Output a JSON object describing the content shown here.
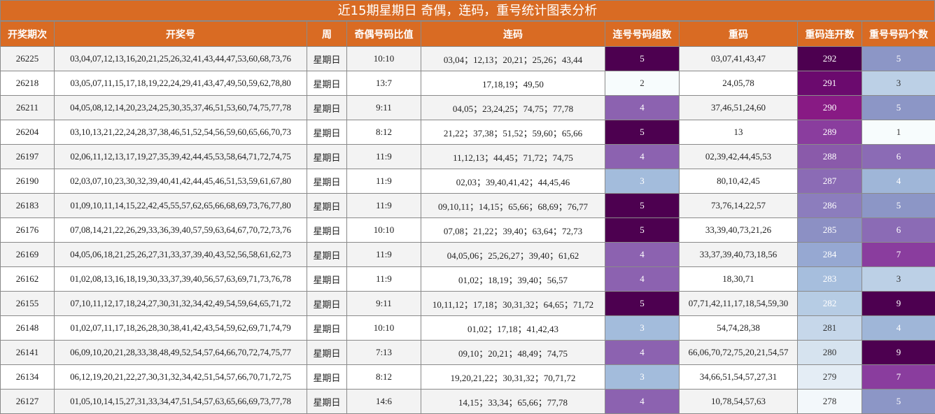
{
  "title": "近15期星期日 奇偶，连码，重号统计图表分析",
  "headers": [
    "开奖期次",
    "开奖号",
    "周",
    "奇偶号码比值",
    "连码",
    "连号号码组数",
    "重码",
    "重码连开数",
    "重号号码个数"
  ],
  "colors": {
    "header_bg": "#d96b23",
    "header_text": "#ffffff"
  },
  "rows": [
    {
      "issue": "26225",
      "numbers": "03,04,07,12,13,16,20,21,25,26,32,41,43,44,47,53,60,68,73,76",
      "week": "星期日",
      "odd_even": "10:10",
      "consecutive": "03,04；12,13；20,21；25,26；43,44",
      "groups": "5",
      "repeat": "03,07,41,43,47",
      "repeat_run": "292",
      "repeat_count": "5",
      "groups_color": "#4d0050",
      "run_color": "#4d0050",
      "count_color": "#8c96c6"
    },
    {
      "issue": "26218",
      "numbers": "03,05,07,11,15,17,18,19,22,24,29,41,43,47,49,50,59,62,78,80",
      "week": "星期日",
      "odd_even": "13:7",
      "consecutive": "17,18,19；49,50",
      "groups": "2",
      "repeat": "24,05,78",
      "repeat_run": "291",
      "repeat_count": "3",
      "groups_color": "#f7fcfd",
      "run_color": "#6b0a6e",
      "count_color": "#bcd0e6"
    },
    {
      "issue": "26211",
      "numbers": "04,05,08,12,14,20,23,24,25,30,35,37,46,51,53,60,74,75,77,78",
      "week": "星期日",
      "odd_even": "9:11",
      "consecutive": "04,05；23,24,25；74,75；77,78",
      "groups": "4",
      "repeat": "37,46,51,24,60",
      "repeat_run": "290",
      "repeat_count": "5",
      "groups_color": "#8c62b0",
      "run_color": "#881a84",
      "count_color": "#8c96c6"
    },
    {
      "issue": "26204",
      "numbers": "03,10,13,21,22,24,28,37,38,46,51,52,54,56,59,60,65,66,70,73",
      "week": "星期日",
      "odd_even": "8:12",
      "consecutive": "21,22；37,38；51,52；59,60；65,66",
      "groups": "5",
      "repeat": "13",
      "repeat_run": "289",
      "repeat_count": "1",
      "groups_color": "#4d0050",
      "run_color": "#8a3d9e",
      "count_color": "#f7fcfd"
    },
    {
      "issue": "26197",
      "numbers": "02,06,11,12,13,17,19,27,35,39,42,44,45,53,58,64,71,72,74,75",
      "week": "星期日",
      "odd_even": "11:9",
      "consecutive": "11,12,13；44,45；71,72；74,75",
      "groups": "4",
      "repeat": "02,39,42,44,45,53",
      "repeat_run": "288",
      "repeat_count": "6",
      "groups_color": "#8c62b0",
      "run_color": "#8a5aaa",
      "count_color": "#8b6bb5"
    },
    {
      "issue": "26190",
      "numbers": "02,03,07,10,23,30,32,39,40,41,42,44,45,46,51,53,59,61,67,80",
      "week": "星期日",
      "odd_even": "11:9",
      "consecutive": "02,03；39,40,41,42；44,45,46",
      "groups": "3",
      "repeat": "80,10,42,45",
      "repeat_run": "287",
      "repeat_count": "4",
      "groups_color": "#a3bcdc",
      "run_color": "#8b6bb5",
      "count_color": "#9fb6d8"
    },
    {
      "issue": "26183",
      "numbers": "01,09,10,11,14,15,22,42,45,55,57,62,65,66,68,69,73,76,77,80",
      "week": "星期日",
      "odd_even": "11:9",
      "consecutive": "09,10,11；14,15；65,66；68,69；76,77",
      "groups": "5",
      "repeat": "73,76,14,22,57",
      "repeat_run": "286",
      "repeat_count": "5",
      "groups_color": "#4d0050",
      "run_color": "#8c7dbd",
      "count_color": "#8c96c6"
    },
    {
      "issue": "26176",
      "numbers": "07,08,14,21,22,26,29,33,36,39,40,57,59,63,64,67,70,72,73,76",
      "week": "星期日",
      "odd_even": "10:10",
      "consecutive": "07,08；21,22；39,40；63,64；72,73",
      "groups": "5",
      "repeat": "33,39,40,73,21,26",
      "repeat_run": "285",
      "repeat_count": "6",
      "groups_color": "#4d0050",
      "run_color": "#8c90c4",
      "count_color": "#8b6bb5"
    },
    {
      "issue": "26169",
      "numbers": "04,05,06,18,21,25,26,27,31,33,37,39,40,43,52,56,58,61,62,73",
      "week": "星期日",
      "odd_even": "11:9",
      "consecutive": "04,05,06；25,26,27；39,40；61,62",
      "groups": "4",
      "repeat": "33,37,39,40,73,18,56",
      "repeat_run": "284",
      "repeat_count": "7",
      "groups_color": "#8c62b0",
      "run_color": "#96a8d2",
      "count_color": "#8a3d9e"
    },
    {
      "issue": "26162",
      "numbers": "01,02,08,13,16,18,19,30,33,37,39,40,56,57,63,69,71,73,76,78",
      "week": "星期日",
      "odd_even": "11:9",
      "consecutive": "01,02；18,19；39,40；56,57",
      "groups": "4",
      "repeat": "18,30,71",
      "repeat_run": "283",
      "repeat_count": "3",
      "groups_color": "#8c62b0",
      "run_color": "#a6bedd",
      "count_color": "#bcd0e6"
    },
    {
      "issue": "26155",
      "numbers": "07,10,11,12,17,18,24,27,30,31,32,34,42,49,54,59,64,65,71,72",
      "week": "星期日",
      "odd_even": "9:11",
      "consecutive": "10,11,12；17,18；30,31,32；64,65；71,72",
      "groups": "5",
      "repeat": "07,71,42,11,17,18,54,59,30",
      "repeat_run": "282",
      "repeat_count": "9",
      "groups_color": "#4d0050",
      "run_color": "#b6cce4",
      "count_color": "#4d0050"
    },
    {
      "issue": "26148",
      "numbers": "01,02,07,11,17,18,26,28,30,38,41,42,43,54,59,62,69,71,74,79",
      "week": "星期日",
      "odd_even": "10:10",
      "consecutive": "01,02；17,18；41,42,43",
      "groups": "3",
      "repeat": "54,74,28,38",
      "repeat_run": "281",
      "repeat_count": "4",
      "groups_color": "#a3bcdc",
      "run_color": "#c6d7ea",
      "count_color": "#9fb6d8"
    },
    {
      "issue": "26141",
      "numbers": "06,09,10,20,21,28,33,38,48,49,52,54,57,64,66,70,72,74,75,77",
      "week": "星期日",
      "odd_even": "7:13",
      "consecutive": "09,10；20,21；48,49；74,75",
      "groups": "4",
      "repeat": "66,06,70,72,75,20,21,54,57",
      "repeat_run": "280",
      "repeat_count": "9",
      "groups_color": "#8c62b0",
      "run_color": "#d6e3ef",
      "count_color": "#4d0050"
    },
    {
      "issue": "26134",
      "numbers": "06,12,19,20,21,22,27,30,31,32,34,42,51,54,57,66,70,71,72,75",
      "week": "星期日",
      "odd_even": "8:12",
      "consecutive": "19,20,21,22；30,31,32；70,71,72",
      "groups": "3",
      "repeat": "34,66,51,54,57,27,31",
      "repeat_run": "279",
      "repeat_count": "7",
      "groups_color": "#a3bcdc",
      "run_color": "#e4edf5",
      "count_color": "#8a3d9e"
    },
    {
      "issue": "26127",
      "numbers": "01,05,10,14,15,27,31,33,34,47,51,54,57,63,65,66,69,73,77,78",
      "week": "星期日",
      "odd_even": "14:6",
      "consecutive": "14,15；33,34；65,66；77,78",
      "groups": "4",
      "repeat": "10,78,54,57,63",
      "repeat_run": "278",
      "repeat_count": "5",
      "groups_color": "#8c62b0",
      "run_color": "#f3f8fb",
      "count_color": "#8c96c6"
    }
  ]
}
